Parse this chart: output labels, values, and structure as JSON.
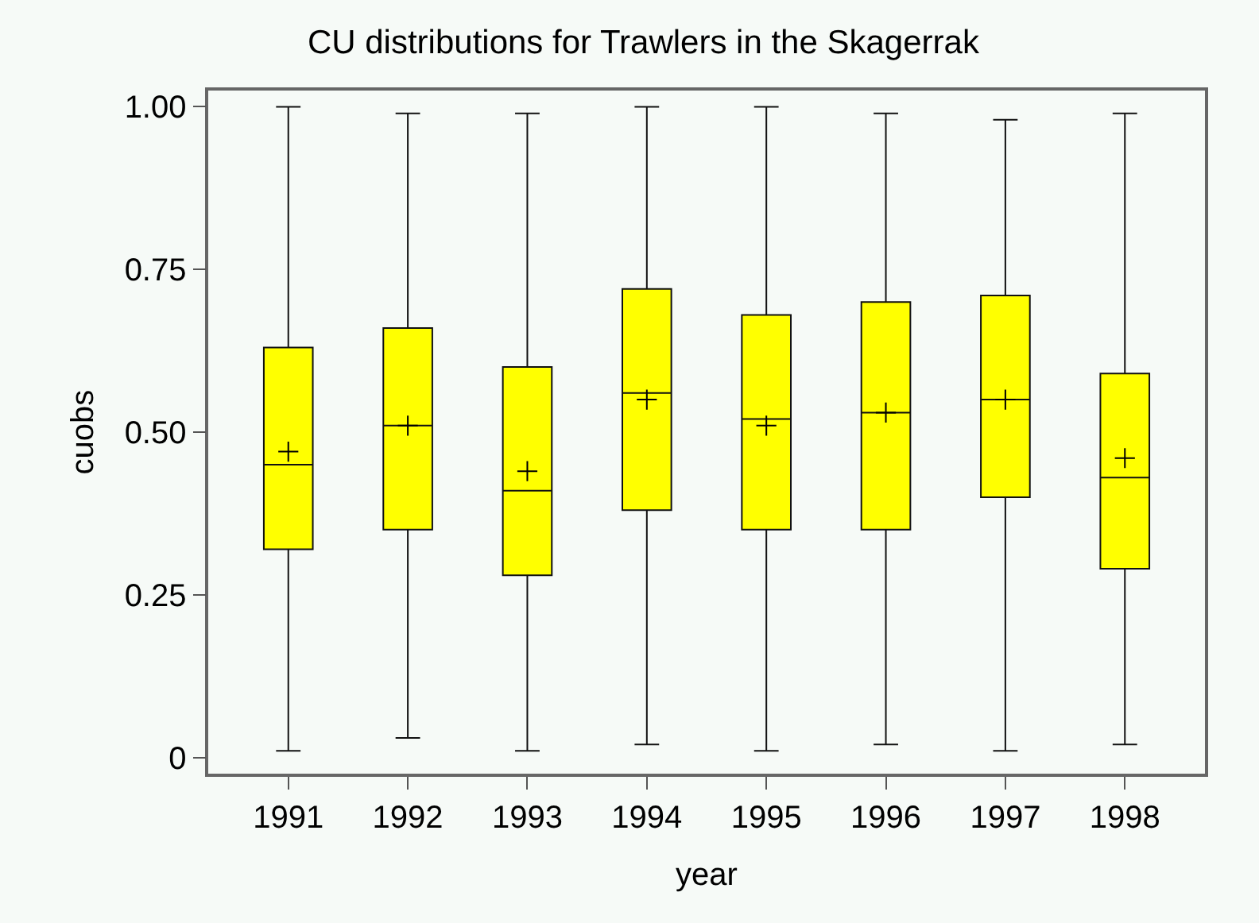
{
  "chart_data": {
    "type": "box",
    "title": "CU distributions for Trawlers in the Skagerrak",
    "xlabel": "year",
    "ylabel": "cuobs",
    "categories": [
      "1991",
      "1992",
      "1993",
      "1994",
      "1995",
      "1996",
      "1997",
      "1998"
    ],
    "ylim": [
      -0.025,
      1.025
    ],
    "yticks": [
      0,
      0.25,
      {
        "value": 0.5,
        "label": "0.50"
      },
      0.75,
      {
        "value": 1,
        "label": "1.00"
      }
    ],
    "color": "#ffff00",
    "marker": "cross",
    "boxes": [
      {
        "low": 0.01,
        "q1": 0.32,
        "median": 0.45,
        "q3": 0.63,
        "high": 1.0,
        "mean": 0.47
      },
      {
        "low": 0.03,
        "q1": 0.35,
        "median": 0.51,
        "q3": 0.66,
        "high": 0.99,
        "mean": 0.51
      },
      {
        "low": 0.01,
        "q1": 0.28,
        "median": 0.41,
        "q3": 0.6,
        "high": 0.99,
        "mean": 0.44
      },
      {
        "low": 0.02,
        "q1": 0.38,
        "median": 0.56,
        "q3": 0.72,
        "high": 1.0,
        "mean": 0.55
      },
      {
        "low": 0.01,
        "q1": 0.35,
        "median": 0.52,
        "q3": 0.68,
        "high": 1.0,
        "mean": 0.51
      },
      {
        "low": 0.02,
        "q1": 0.35,
        "median": 0.53,
        "q3": 0.7,
        "high": 0.99,
        "mean": 0.53
      },
      {
        "low": 0.01,
        "q1": 0.4,
        "median": 0.55,
        "q3": 0.71,
        "high": 0.98,
        "mean": 0.55
      },
      {
        "low": 0.02,
        "q1": 0.29,
        "median": 0.43,
        "q3": 0.59,
        "high": 0.99,
        "mean": 0.46
      }
    ]
  }
}
